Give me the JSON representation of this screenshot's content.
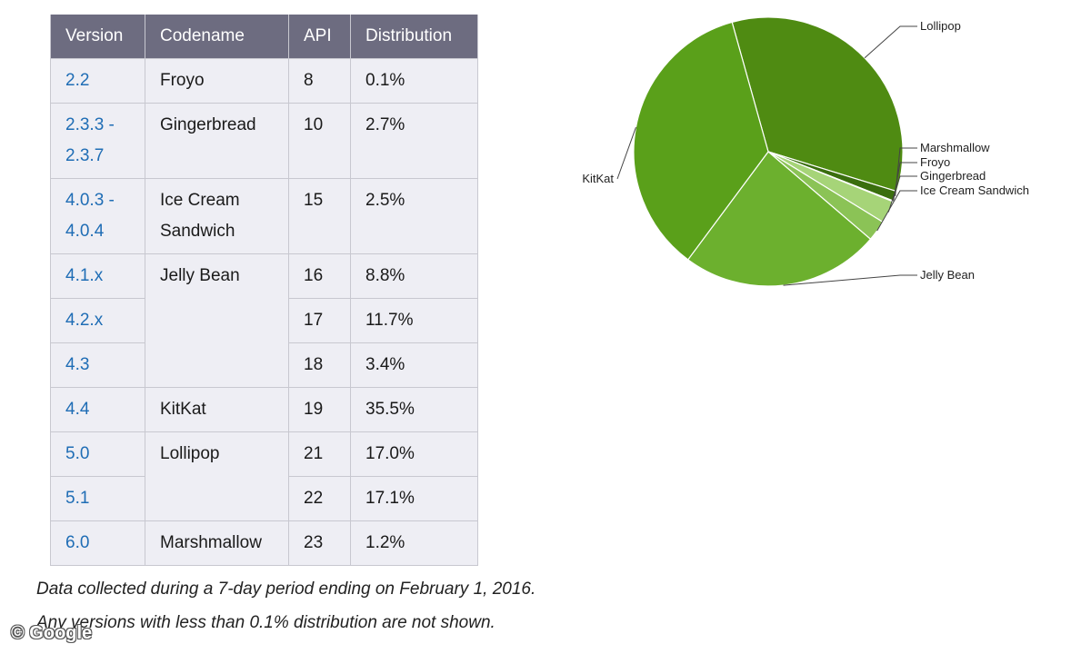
{
  "table": {
    "headers": [
      "Version",
      "Codename",
      "API",
      "Distribution"
    ],
    "rows": [
      {
        "version": "2.2",
        "codename": "Froyo",
        "api": "8",
        "distribution": "0.1%"
      },
      {
        "version": "2.3.3 -\n2.3.7",
        "codename": "Gingerbread",
        "api": "10",
        "distribution": "2.7%"
      },
      {
        "version": "4.0.3 -\n4.0.4",
        "codename": "Ice Cream\nSandwich",
        "api": "15",
        "distribution": "2.5%"
      },
      {
        "version": "4.1.x",
        "codename": "Jelly Bean",
        "api": "16",
        "distribution": "8.8%"
      },
      {
        "version": "4.2.x",
        "codename": "",
        "api": "17",
        "distribution": "11.7%"
      },
      {
        "version": "4.3",
        "codename": "",
        "api": "18",
        "distribution": "3.4%"
      },
      {
        "version": "4.4",
        "codename": "KitKat",
        "api": "19",
        "distribution": "35.5%"
      },
      {
        "version": "5.0",
        "codename": "Lollipop",
        "api": "21",
        "distribution": "17.0%"
      },
      {
        "version": "5.1",
        "codename": "",
        "api": "22",
        "distribution": "17.1%"
      },
      {
        "version": "6.0",
        "codename": "Marshmallow",
        "api": "23",
        "distribution": "1.2%"
      }
    ]
  },
  "footnotes": [
    "Data collected during a 7-day period ending on February 1, 2016.",
    "Any versions with less than 0.1% distribution are not shown."
  ],
  "watermark": "© Google",
  "colors": {
    "header_bg": "#6d6c80",
    "cell_bg": "#eeeef4",
    "link": "#1f6db5"
  },
  "chart_data": {
    "type": "pie",
    "slices": [
      {
        "label": "Lollipop",
        "value": 34.1,
        "color": "#4f8b12"
      },
      {
        "label": "Marshmallow",
        "value": 1.2,
        "color": "#3a6e0e"
      },
      {
        "label": "Froyo",
        "value": 0.1,
        "color": "#c6e39f"
      },
      {
        "label": "Gingerbread",
        "value": 2.7,
        "color": "#a6d478"
      },
      {
        "label": "Ice Cream Sandwich",
        "value": 2.5,
        "color": "#8bc356"
      },
      {
        "label": "Jelly Bean",
        "value": 23.9,
        "color": "#6cb02e"
      },
      {
        "label": "KitKat",
        "value": 35.5,
        "color": "#5aa01a"
      }
    ]
  }
}
